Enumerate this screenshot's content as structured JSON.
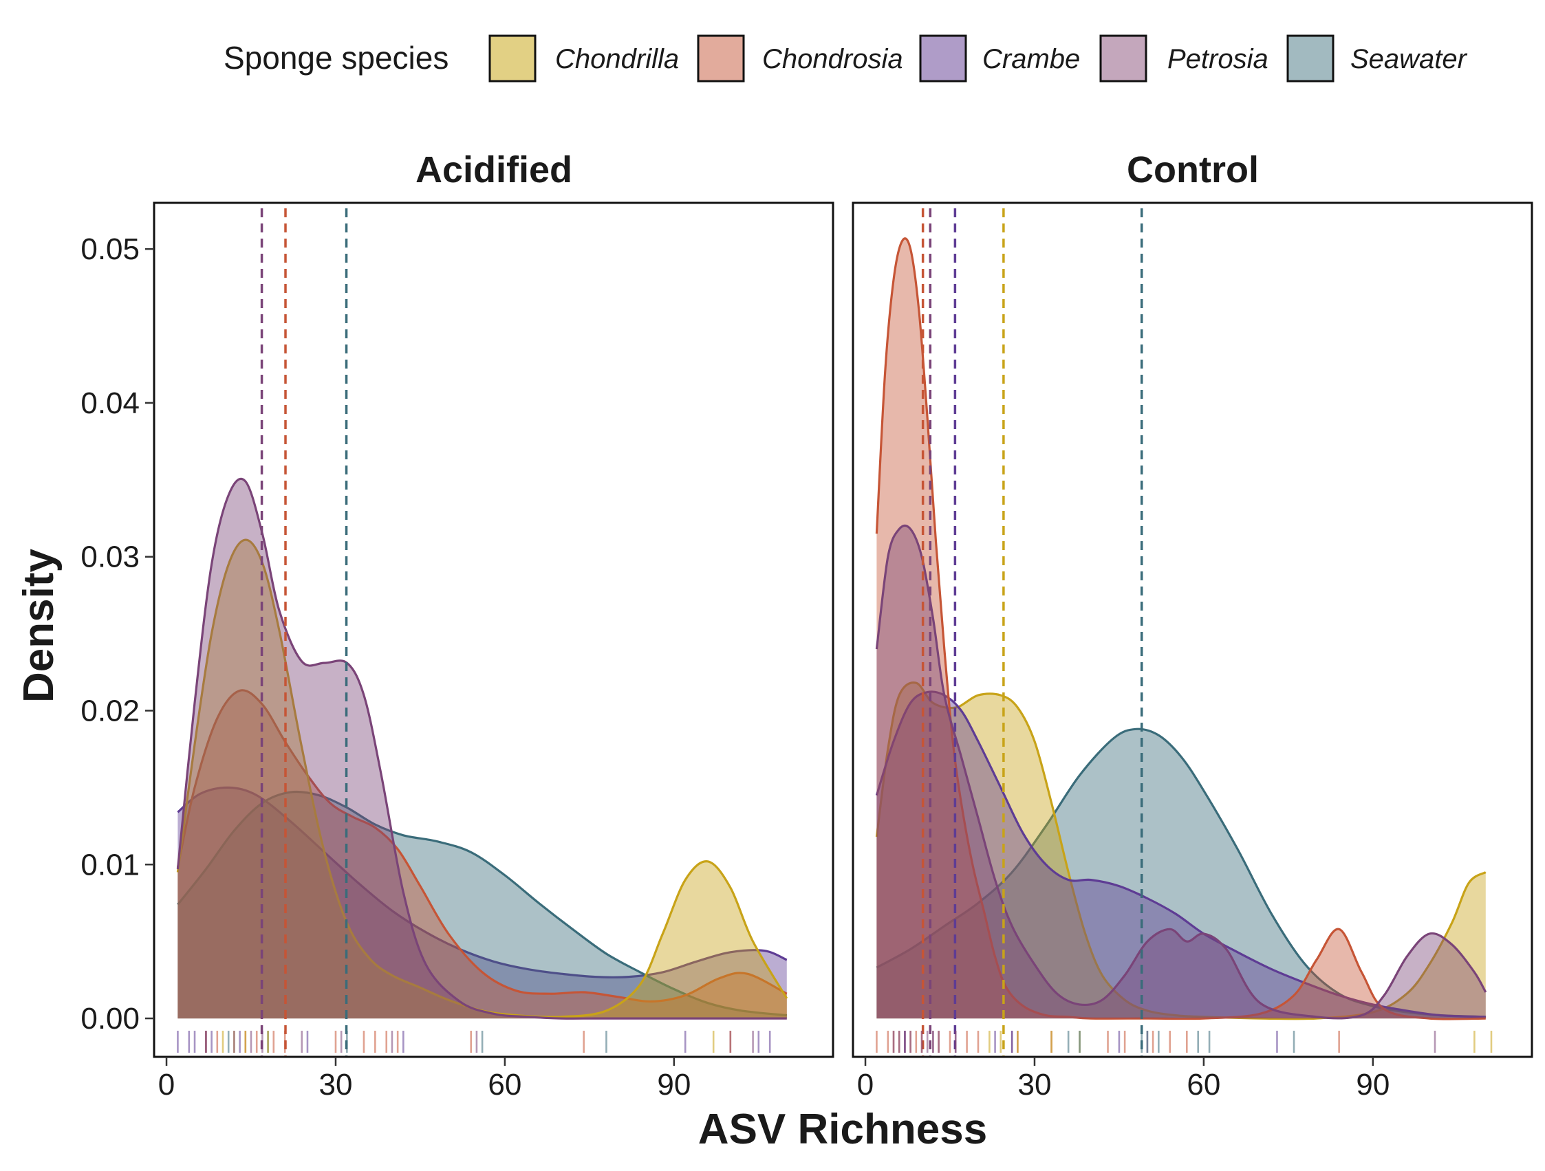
{
  "legend": {
    "title": "Sponge species",
    "placement": "top",
    "items": [
      {
        "label": "Chondrilla",
        "fill": "#E2D084",
        "stroke": "#C8A318"
      },
      {
        "label": "Chondrosia",
        "fill": "#E2AB9C",
        "stroke": "#C65536"
      },
      {
        "label": "Crambe",
        "fill": "#AF9CC8",
        "stroke": "#5E3C94"
      },
      {
        "label": "Petrosia",
        "fill": "#C4A7BC",
        "stroke": "#7A4478"
      },
      {
        "label": "Seawater",
        "fill": "#A2BAC0",
        "stroke": "#3A6C7A"
      }
    ]
  },
  "chart_data": [
    {
      "type": "area",
      "title": "Acidified",
      "xlabel": "ASV Richness",
      "ylabel": "Density",
      "xlim": [
        -2.2,
        118.2
      ],
      "ylim": [
        -0.0025,
        0.053
      ],
      "xticks": [
        0,
        30,
        60,
        90
      ],
      "yticks": [
        0.0,
        0.01,
        0.02,
        0.03,
        0.04,
        0.05
      ],
      "ytick_labels": [
        "0.00",
        "0.01",
        "0.02",
        "0.03",
        "0.04",
        "0.05"
      ],
      "grid": false,
      "series": [
        {
          "name": "Crambe",
          "x": [
            2,
            6,
            11,
            16,
            22,
            28,
            34,
            40,
            46,
            52,
            58,
            64,
            70,
            76,
            82,
            88,
            94,
            100,
            106,
            110
          ],
          "y": [
            0.0134,
            0.0146,
            0.015,
            0.0145,
            0.0128,
            0.0108,
            0.0088,
            0.007,
            0.0056,
            0.0045,
            0.0037,
            0.0032,
            0.0029,
            0.0027,
            0.0027,
            0.003,
            0.0037,
            0.0043,
            0.0044,
            0.0038
          ],
          "mean": null
        },
        {
          "name": "Seawater",
          "x": [
            2,
            7,
            12,
            17,
            22,
            27,
            32,
            37,
            42,
            48,
            54,
            60,
            66,
            72,
            78,
            84,
            90,
            96,
            102,
            110
          ],
          "y": [
            0.0074,
            0.0097,
            0.0122,
            0.014,
            0.0147,
            0.0145,
            0.0137,
            0.0126,
            0.0119,
            0.0115,
            0.0108,
            0.0093,
            0.0075,
            0.0058,
            0.0042,
            0.003,
            0.0019,
            0.001,
            0.0005,
            0.0002
          ],
          "mean": 31.9
        },
        {
          "name": "Chondrosia",
          "x": [
            2,
            5,
            9,
            13,
            17,
            21,
            25,
            29,
            33,
            37,
            41,
            45,
            50,
            56,
            62,
            68,
            74,
            80,
            86,
            92,
            98,
            103,
            110
          ],
          "y": [
            0.0098,
            0.015,
            0.0195,
            0.0213,
            0.0204,
            0.018,
            0.0158,
            0.014,
            0.0131,
            0.0124,
            0.011,
            0.0086,
            0.0055,
            0.003,
            0.0018,
            0.0016,
            0.0017,
            0.0014,
            0.0011,
            0.0015,
            0.0026,
            0.0029,
            0.0016
          ],
          "mean": 21.1
        },
        {
          "name": "Chondrilla",
          "x": [
            2,
            5,
            8,
            11,
            14,
            17,
            20,
            24,
            28,
            32,
            36,
            40,
            45,
            50,
            56,
            62,
            70,
            78,
            84,
            88,
            92,
            96,
            100,
            104,
            110
          ],
          "y": [
            0.0095,
            0.0178,
            0.025,
            0.0295,
            0.0311,
            0.0296,
            0.0252,
            0.0176,
            0.0108,
            0.0062,
            0.0039,
            0.0028,
            0.002,
            0.0012,
            0.0005,
            0.0002,
            0.0001,
            0.0005,
            0.0022,
            0.0055,
            0.009,
            0.0102,
            0.0085,
            0.005,
            0.0013
          ],
          "mean": null
        },
        {
          "name": "Petrosia",
          "x": [
            2,
            5,
            8,
            11,
            14,
            17,
            20,
            24,
            28,
            32,
            35,
            38,
            42,
            46,
            52,
            58,
            64,
            70,
            76,
            82,
            88,
            94,
            100,
            106,
            110
          ],
          "y": [
            0.0097,
            0.0205,
            0.0295,
            0.034,
            0.0349,
            0.0315,
            0.0265,
            0.0232,
            0.0231,
            0.0231,
            0.021,
            0.016,
            0.0082,
            0.0035,
            0.0011,
            0.0003,
            0.0001,
            0.0,
            0.0,
            0.0,
            0.0,
            0.0,
            0.0,
            0.0,
            0.0
          ],
          "mean": 16.9
        }
      ],
      "rug": [
        {
          "series": "Crambe",
          "x": [
            2,
            4,
            5,
            7,
            8,
            13,
            25,
            42,
            92,
            100,
            105,
            107
          ]
        },
        {
          "series": "Seawater",
          "x": [
            11,
            18,
            32,
            56,
            78
          ]
        },
        {
          "series": "Chondrosia",
          "x": [
            7,
            9,
            14,
            16,
            19,
            21,
            30,
            35,
            37,
            39,
            41,
            54,
            74,
            100
          ]
        },
        {
          "series": "Chondrilla",
          "x": [
            10,
            12,
            14,
            18,
            97
          ]
        },
        {
          "series": "Petrosia",
          "x": [
            7,
            12,
            15,
            17,
            24,
            31,
            40,
            55,
            104
          ]
        }
      ]
    },
    {
      "type": "area",
      "title": "Control",
      "xlabel": "ASV Richness",
      "ylabel": "Density",
      "xlim": [
        -2.2,
        118.2
      ],
      "ylim": [
        -0.0025,
        0.053
      ],
      "xticks": [
        0,
        30,
        60,
        90
      ],
      "yticks": [
        0.0,
        0.01,
        0.02,
        0.03,
        0.04,
        0.05
      ],
      "ytick_labels": [
        "0.00",
        "0.01",
        "0.02",
        "0.03",
        "0.04",
        "0.05"
      ],
      "grid": false,
      "series": [
        {
          "name": "Seawater",
          "x": [
            2,
            8,
            14,
            20,
            26,
            32,
            38,
            44,
            48,
            52,
            56,
            60,
            66,
            72,
            78,
            84,
            90,
            96,
            102,
            110
          ],
          "y": [
            0.0033,
            0.0045,
            0.006,
            0.0075,
            0.0095,
            0.0125,
            0.0158,
            0.0182,
            0.0188,
            0.0184,
            0.017,
            0.0148,
            0.011,
            0.0068,
            0.0035,
            0.0016,
            0.0008,
            0.0004,
            0.0002,
            0.0001
          ],
          "mean": 49.0
        },
        {
          "name": "Chondrilla",
          "x": [
            2,
            4,
            6,
            9,
            12,
            16,
            20,
            24,
            27,
            30,
            33,
            36,
            39,
            42,
            46,
            50,
            55,
            60,
            70,
            80,
            90,
            96,
            100,
            104,
            107,
            110
          ],
          "y": [
            0.0118,
            0.0175,
            0.021,
            0.0218,
            0.0205,
            0.0202,
            0.021,
            0.021,
            0.0202,
            0.018,
            0.014,
            0.0095,
            0.0055,
            0.0028,
            0.0012,
            0.0005,
            0.0002,
            0.0001,
            0.0,
            0.0,
            0.0004,
            0.0016,
            0.0035,
            0.0062,
            0.0088,
            0.0095
          ],
          "mean": 24.5
        },
        {
          "name": "Crambe",
          "x": [
            2,
            5,
            8,
            11,
            14,
            17,
            20,
            24,
            28,
            32,
            36,
            40,
            45,
            50,
            55,
            60,
            66,
            72,
            78,
            84,
            90,
            96,
            102,
            110
          ],
          "y": [
            0.0145,
            0.018,
            0.0205,
            0.0212,
            0.021,
            0.02,
            0.018,
            0.015,
            0.012,
            0.01,
            0.009,
            0.009,
            0.0086,
            0.0078,
            0.0068,
            0.0055,
            0.0043,
            0.0032,
            0.0023,
            0.0015,
            0.0009,
            0.0005,
            0.0002,
            0.0001
          ],
          "mean": 15.9
        },
        {
          "name": "Chondrosia",
          "x": [
            2,
            3.5,
            5,
            6.5,
            8,
            9.5,
            11,
            12.5,
            14,
            15.5,
            17,
            19,
            21,
            23,
            25,
            28,
            32,
            36,
            40,
            50,
            60,
            70,
            76,
            80,
            84,
            88,
            92,
            100,
            110
          ],
          "y": [
            0.0315,
            0.042,
            0.048,
            0.0505,
            0.05,
            0.046,
            0.039,
            0.031,
            0.024,
            0.018,
            0.014,
            0.01,
            0.007,
            0.004,
            0.002,
            0.0008,
            0.0002,
            0.0001,
            0.0,
            0.0,
            0.0,
            0.0003,
            0.0015,
            0.0038,
            0.0058,
            0.003,
            0.0006,
            0.0,
            0.0
          ],
          "mean": 10.2
        },
        {
          "name": "Petrosia",
          "x": [
            2,
            4,
            6,
            8,
            10,
            12,
            14,
            17,
            20,
            23,
            26,
            30,
            34,
            38,
            42,
            46,
            50,
            54,
            57,
            60,
            64,
            70,
            80,
            88,
            92,
            96,
            100,
            104,
            108,
            110
          ],
          "y": [
            0.024,
            0.03,
            0.0318,
            0.0318,
            0.03,
            0.026,
            0.021,
            0.017,
            0.013,
            0.009,
            0.006,
            0.0035,
            0.0016,
            0.0009,
            0.0012,
            0.0028,
            0.005,
            0.0058,
            0.005,
            0.0055,
            0.0045,
            0.001,
            0.0001,
            0.0002,
            0.0015,
            0.004,
            0.0055,
            0.0048,
            0.003,
            0.0017
          ],
          "mean": 11.5
        }
      ],
      "rug": [
        {
          "series": "Chondrosia",
          "x": [
            2,
            4,
            5,
            6,
            7,
            8,
            9,
            10,
            12,
            13,
            15,
            16,
            18,
            20,
            27,
            33,
            43,
            46,
            51,
            54,
            57,
            84
          ]
        },
        {
          "series": "Petrosia",
          "x": [
            5,
            6,
            7,
            8,
            10,
            11,
            13,
            26,
            50,
            101
          ]
        },
        {
          "series": "Crambe",
          "x": [
            7,
            12,
            16,
            23,
            26,
            45,
            73
          ]
        },
        {
          "series": "Chondrilla",
          "x": [
            22,
            24,
            27,
            33,
            38,
            108,
            111
          ]
        },
        {
          "series": "Seawater",
          "x": [
            36,
            38,
            49,
            50,
            52,
            59,
            61,
            76
          ]
        }
      ]
    }
  ]
}
